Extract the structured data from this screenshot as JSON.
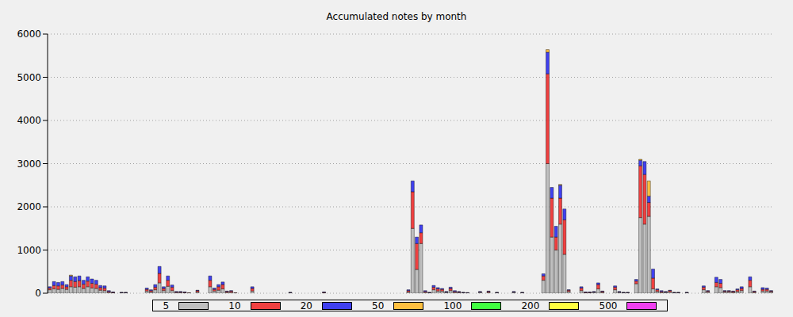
{
  "chart_data": {
    "type": "bar",
    "title": "Accumulated notes by month",
    "stacked": true,
    "grid": true,
    "legend": "bottom",
    "tick_labels": "y",
    "ylim": [
      0,
      6000
    ],
    "yticks": [
      0,
      1000,
      2000,
      3000,
      4000,
      5000,
      6000
    ],
    "categories": [
      null,
      null,
      null,
      null,
      null,
      null,
      null,
      null,
      null,
      null,
      null,
      null,
      null,
      null,
      null,
      null,
      null,
      null,
      null,
      null,
      null,
      null,
      null,
      null,
      null,
      null,
      null,
      null,
      null,
      null,
      null,
      null,
      null,
      null,
      null,
      null,
      null,
      null,
      null,
      null,
      null,
      null,
      null,
      null,
      null,
      null,
      null,
      null,
      null,
      null,
      null,
      null,
      null,
      null,
      null,
      null,
      null,
      null,
      null,
      null,
      null,
      null,
      null,
      null,
      null,
      null,
      null,
      null,
      null,
      null,
      null,
      null,
      null,
      null,
      null,
      null,
      null,
      null,
      null,
      null,
      null,
      null,
      null,
      null,
      null,
      null,
      null,
      null,
      null,
      null,
      null,
      null,
      null,
      null,
      null,
      null,
      null,
      null,
      null,
      null,
      null,
      null,
      null,
      null,
      null,
      null,
      null,
      null,
      null,
      null,
      null,
      null,
      null,
      null,
      null,
      null,
      null,
      null,
      null,
      null,
      null,
      null,
      null,
      null,
      null,
      null,
      null,
      null,
      null,
      null,
      null,
      null,
      null,
      null,
      null,
      null,
      null,
      null,
      null,
      null,
      null,
      null,
      null,
      null,
      null,
      null,
      null,
      null,
      null,
      null,
      null,
      null,
      null,
      null,
      null,
      null,
      null,
      null,
      null,
      null,
      null,
      null,
      null,
      null,
      null,
      null,
      null,
      null,
      null,
      null,
      null,
      null
    ],
    "series": [
      {
        "name": "5",
        "color": "#c0c0c0",
        "values": [
          80,
          100,
          90,
          110,
          90,
          150,
          140,
          150,
          110,
          150,
          120,
          110,
          70,
          60,
          20,
          10,
          0,
          10,
          10,
          0,
          0,
          0,
          0,
          50,
          30,
          80,
          240,
          60,
          160,
          60,
          15,
          15,
          10,
          5,
          0,
          30,
          0,
          0,
          150,
          50,
          70,
          100,
          20,
          20,
          5,
          0,
          0,
          0,
          50,
          0,
          0,
          0,
          0,
          0,
          0,
          0,
          0,
          10,
          0,
          0,
          0,
          0,
          0,
          0,
          0,
          10,
          0,
          0,
          0,
          0,
          0,
          0,
          0,
          0,
          0,
          0,
          0,
          0,
          0,
          0,
          0,
          0,
          0,
          0,
          0,
          30,
          1500,
          550,
          1150,
          20,
          10,
          80,
          50,
          50,
          20,
          60,
          20,
          15,
          10,
          5,
          0,
          0,
          20,
          0,
          20,
          0,
          10,
          0,
          0,
          0,
          20,
          0,
          10,
          0,
          0,
          0,
          0,
          300,
          3000,
          1300,
          1000,
          1600,
          900,
          40,
          0,
          0,
          60,
          10,
          10,
          20,
          100,
          20,
          0,
          0,
          80,
          20,
          10,
          10,
          0,
          220,
          1750,
          1600,
          1780,
          100,
          40,
          20,
          20,
          30,
          10,
          10,
          0,
          10,
          0,
          0,
          0,
          80,
          30,
          0,
          150,
          130,
          30,
          30,
          20,
          40,
          60,
          0,
          150,
          20,
          0,
          50,
          50,
          30
        ]
      },
      {
        "name": "10",
        "color": "#f04040",
        "values": [
          40,
          80,
          80,
          80,
          60,
          150,
          130,
          140,
          100,
          130,
          110,
          100,
          60,
          60,
          20,
          10,
          0,
          5,
          5,
          0,
          0,
          0,
          0,
          40,
          30,
          60,
          220,
          50,
          140,
          80,
          15,
          15,
          10,
          5,
          0,
          30,
          0,
          0,
          150,
          40,
          80,
          100,
          20,
          30,
          5,
          0,
          0,
          0,
          60,
          0,
          0,
          0,
          0,
          0,
          0,
          0,
          0,
          5,
          0,
          0,
          0,
          0,
          0,
          0,
          0,
          10,
          0,
          0,
          0,
          0,
          0,
          0,
          0,
          0,
          0,
          0,
          0,
          0,
          0,
          0,
          0,
          0,
          0,
          0,
          0,
          30,
          850,
          600,
          250,
          20,
          5,
          60,
          50,
          40,
          10,
          50,
          20,
          15,
          5,
          5,
          0,
          0,
          10,
          0,
          20,
          0,
          5,
          0,
          0,
          0,
          10,
          0,
          5,
          0,
          0,
          0,
          0,
          100,
          2080,
          900,
          300,
          600,
          800,
          30,
          0,
          0,
          60,
          10,
          10,
          10,
          100,
          20,
          0,
          0,
          60,
          10,
          5,
          5,
          0,
          60,
          1200,
          1150,
          320,
          250,
          40,
          20,
          10,
          30,
          5,
          5,
          0,
          5,
          0,
          0,
          0,
          60,
          20,
          0,
          100,
          100,
          20,
          20,
          20,
          40,
          50,
          0,
          150,
          20,
          0,
          40,
          40,
          20
        ]
      },
      {
        "name": "20",
        "color": "#4040f0",
        "values": [
          30,
          90,
          80,
          80,
          50,
          100,
          110,
          110,
          90,
          100,
          100,
          90,
          50,
          50,
          20,
          10,
          0,
          5,
          5,
          0,
          0,
          0,
          0,
          30,
          20,
          60,
          160,
          40,
          100,
          50,
          10,
          10,
          10,
          0,
          0,
          10,
          0,
          0,
          100,
          30,
          50,
          60,
          10,
          10,
          0,
          0,
          0,
          0,
          40,
          0,
          0,
          0,
          0,
          0,
          0,
          0,
          0,
          5,
          0,
          0,
          0,
          0,
          0,
          0,
          0,
          10,
          0,
          0,
          0,
          0,
          0,
          0,
          0,
          0,
          0,
          0,
          0,
          0,
          0,
          0,
          0,
          0,
          0,
          0,
          0,
          20,
          250,
          150,
          180,
          20,
          5,
          40,
          30,
          20,
          10,
          30,
          20,
          10,
          5,
          5,
          0,
          0,
          10,
          0,
          10,
          0,
          5,
          0,
          0,
          0,
          10,
          0,
          5,
          0,
          0,
          0,
          0,
          50,
          500,
          250,
          250,
          300,
          250,
          10,
          0,
          0,
          30,
          10,
          10,
          10,
          40,
          10,
          0,
          0,
          30,
          10,
          5,
          5,
          0,
          40,
          130,
          300,
          150,
          210,
          20,
          20,
          10,
          10,
          5,
          5,
          0,
          5,
          0,
          0,
          0,
          30,
          10,
          0,
          120,
          90,
          10,
          10,
          10,
          20,
          40,
          0,
          80,
          10,
          0,
          40,
          30,
          10
        ]
      },
      {
        "name": "50",
        "color": "#ffc040",
        "values": [
          0,
          0,
          0,
          0,
          0,
          20,
          0,
          0,
          0,
          0,
          0,
          0,
          0,
          0,
          0,
          0,
          0,
          0,
          0,
          0,
          0,
          0,
          0,
          0,
          0,
          0,
          0,
          0,
          0,
          0,
          0,
          0,
          0,
          0,
          0,
          0,
          0,
          0,
          0,
          0,
          0,
          0,
          0,
          0,
          0,
          0,
          0,
          0,
          0,
          0,
          0,
          0,
          0,
          0,
          0,
          0,
          0,
          0,
          0,
          0,
          0,
          0,
          0,
          0,
          0,
          0,
          0,
          0,
          0,
          0,
          0,
          0,
          0,
          0,
          0,
          0,
          0,
          0,
          0,
          0,
          0,
          0,
          0,
          0,
          0,
          0,
          0,
          0,
          0,
          0,
          0,
          0,
          0,
          0,
          0,
          0,
          0,
          0,
          0,
          0,
          0,
          0,
          0,
          0,
          0,
          0,
          0,
          0,
          0,
          0,
          0,
          0,
          0,
          0,
          0,
          0,
          0,
          0,
          60,
          0,
          0,
          20,
          0,
          0,
          0,
          0,
          0,
          0,
          0,
          0,
          0,
          0,
          0,
          0,
          0,
          0,
          0,
          0,
          0,
          0,
          20,
          0,
          350,
          0,
          0,
          0,
          0,
          0,
          0,
          0,
          0,
          0,
          0,
          0,
          0,
          0,
          0,
          0,
          0,
          0,
          0,
          0,
          0,
          0,
          0,
          0,
          0,
          0,
          0,
          0,
          0,
          0
        ]
      },
      {
        "name": "100",
        "color": "#40ff40",
        "values": [
          0,
          0,
          0,
          0,
          0,
          0,
          0,
          0,
          0,
          0,
          0,
          0,
          0,
          0,
          0,
          0,
          0,
          0,
          0,
          0,
          0,
          0,
          0,
          0,
          0,
          0,
          0,
          0,
          0,
          0,
          0,
          0,
          0,
          0,
          0,
          0,
          0,
          0,
          0,
          0,
          0,
          0,
          0,
          0,
          0,
          0,
          0,
          0,
          0,
          0,
          0,
          0,
          0,
          0,
          0,
          0,
          0,
          0,
          0,
          0,
          0,
          0,
          0,
          0,
          0,
          0,
          0,
          0,
          0,
          0,
          0,
          0,
          0,
          0,
          0,
          0,
          0,
          0,
          0,
          0,
          0,
          0,
          0,
          0,
          0,
          0,
          0,
          0,
          0,
          0,
          0,
          0,
          0,
          0,
          0,
          0,
          0,
          0,
          0,
          0,
          0,
          0,
          0,
          0,
          0,
          0,
          0,
          0,
          0,
          0,
          0,
          0,
          0,
          0,
          0,
          0,
          0,
          0,
          0,
          0,
          0,
          0,
          0,
          0,
          0,
          0,
          0,
          0,
          0,
          0,
          0,
          0,
          0,
          0,
          0,
          0,
          0,
          0,
          0,
          0,
          0,
          0,
          0,
          0,
          0,
          0,
          0,
          0,
          0,
          0,
          0,
          0,
          0,
          0,
          0,
          0,
          0,
          0,
          0,
          0,
          0,
          0,
          0,
          0,
          0,
          0,
          0,
          0,
          0,
          0,
          0,
          0
        ]
      },
      {
        "name": "200",
        "color": "#ffff40",
        "values": [
          0,
          0,
          0,
          0,
          0,
          0,
          0,
          0,
          0,
          0,
          0,
          0,
          0,
          0,
          0,
          0,
          0,
          0,
          0,
          0,
          0,
          0,
          0,
          0,
          0,
          0,
          0,
          0,
          0,
          0,
          0,
          0,
          0,
          0,
          0,
          0,
          0,
          0,
          0,
          0,
          0,
          0,
          0,
          0,
          0,
          0,
          0,
          0,
          0,
          0,
          0,
          0,
          0,
          0,
          0,
          0,
          0,
          0,
          0,
          0,
          0,
          0,
          0,
          0,
          0,
          0,
          0,
          0,
          0,
          0,
          0,
          0,
          0,
          0,
          0,
          0,
          0,
          0,
          0,
          0,
          0,
          0,
          0,
          0,
          0,
          0,
          0,
          0,
          0,
          0,
          0,
          0,
          0,
          0,
          0,
          0,
          0,
          0,
          0,
          0,
          0,
          0,
          0,
          0,
          0,
          0,
          0,
          0,
          0,
          0,
          0,
          0,
          0,
          0,
          0,
          0,
          0,
          0,
          0,
          0,
          0,
          0,
          0,
          0,
          0,
          0,
          0,
          0,
          0,
          0,
          0,
          0,
          0,
          0,
          0,
          0,
          0,
          0,
          0,
          0,
          0,
          0,
          0,
          0,
          0,
          0,
          0,
          0,
          0,
          0,
          0,
          0,
          0,
          0,
          0,
          0,
          0,
          0,
          0,
          0,
          0,
          0,
          0,
          0,
          0,
          0,
          0,
          0,
          0,
          0,
          0,
          0
        ]
      },
      {
        "name": "500",
        "color": "#f040f0",
        "values": [
          0,
          0,
          0,
          0,
          0,
          0,
          0,
          0,
          0,
          0,
          0,
          0,
          0,
          0,
          0,
          0,
          0,
          0,
          0,
          0,
          0,
          0,
          0,
          0,
          0,
          0,
          0,
          0,
          0,
          0,
          0,
          0,
          0,
          0,
          0,
          0,
          0,
          0,
          0,
          0,
          0,
          0,
          0,
          0,
          0,
          0,
          0,
          0,
          0,
          0,
          0,
          0,
          0,
          0,
          0,
          0,
          0,
          0,
          0,
          0,
          0,
          0,
          0,
          0,
          0,
          0,
          0,
          0,
          0,
          0,
          0,
          0,
          0,
          0,
          0,
          0,
          0,
          0,
          0,
          0,
          0,
          0,
          0,
          0,
          0,
          0,
          0,
          0,
          0,
          0,
          0,
          0,
          0,
          0,
          0,
          0,
          0,
          0,
          0,
          0,
          0,
          0,
          0,
          0,
          0,
          0,
          0,
          0,
          0,
          0,
          0,
          0,
          0,
          0,
          0,
          0,
          0,
          0,
          0,
          0,
          0,
          0,
          0,
          0,
          0,
          0,
          0,
          0,
          0,
          0,
          0,
          0,
          0,
          0,
          0,
          0,
          0,
          0,
          0,
          0,
          0,
          0,
          0,
          0,
          0,
          0,
          0,
          0,
          0,
          0,
          0,
          0,
          0,
          0,
          0,
          0,
          0,
          0,
          0,
          0,
          0,
          0,
          0,
          0,
          0,
          0,
          0,
          0,
          0,
          0,
          0,
          0
        ]
      }
    ]
  }
}
